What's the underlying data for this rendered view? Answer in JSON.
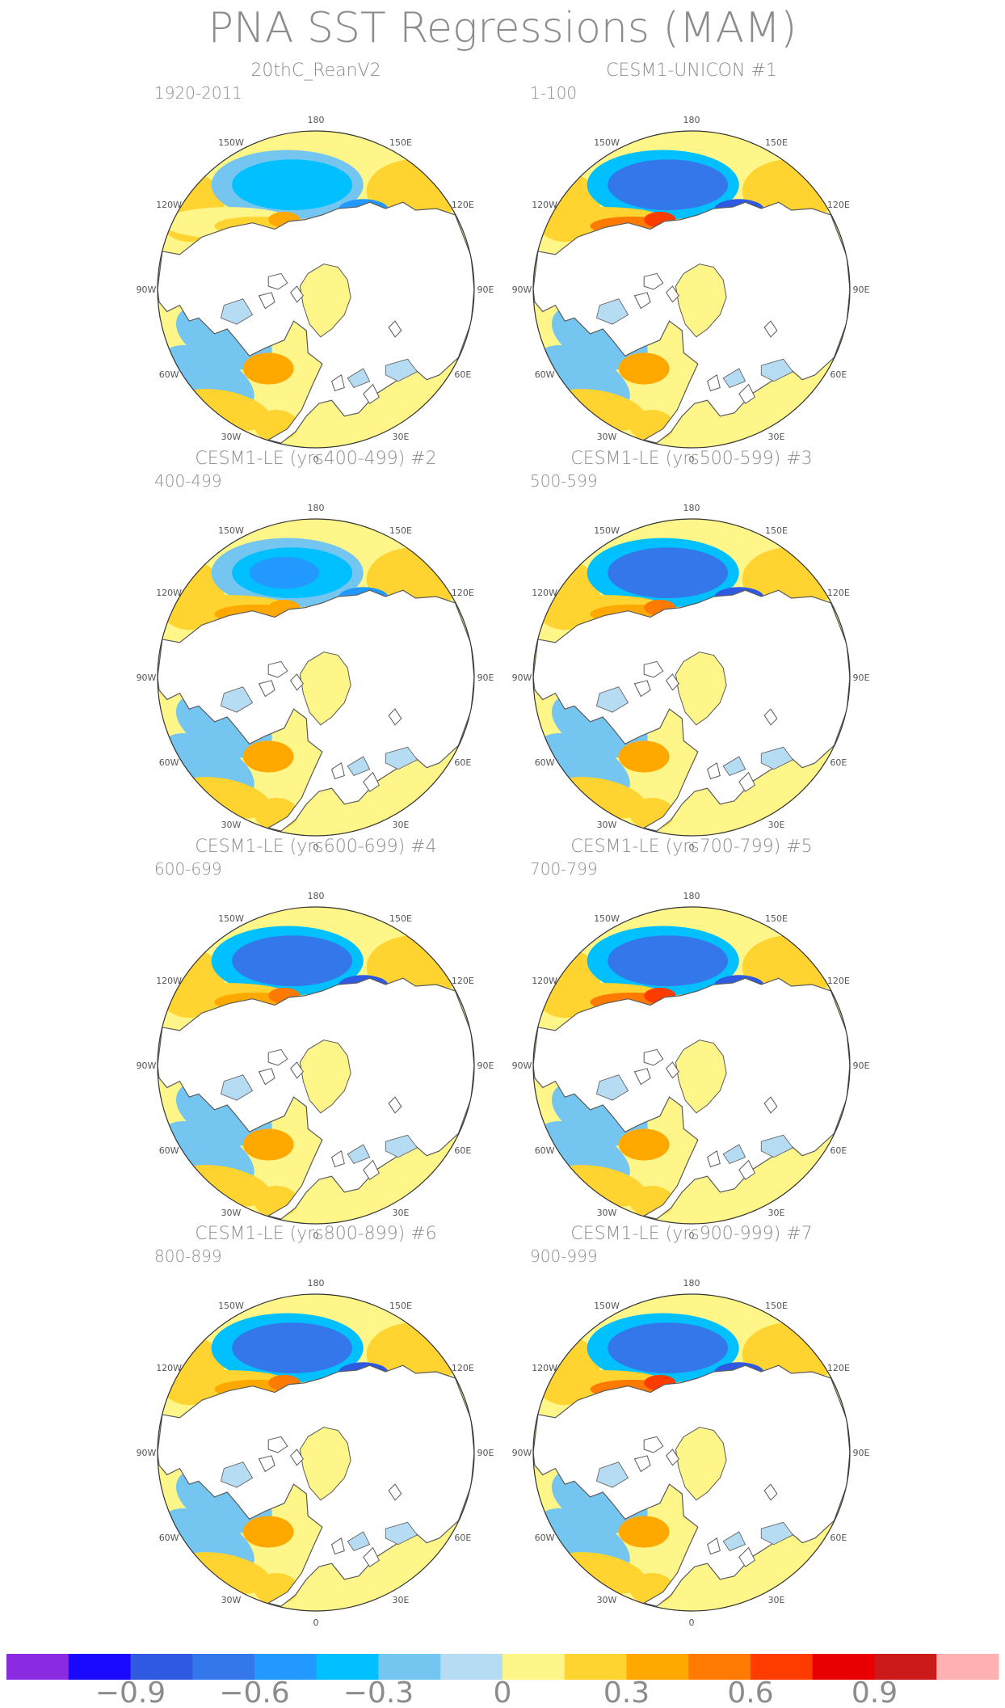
{
  "figure_title": "PNA SST Regressions (MAM)",
  "colors": {
    "land": "#ffffff",
    "coast": "#5a5a5a",
    "text": "#8c8c8c",
    "scale": [
      "#8a2be2",
      "#1a09ff",
      "#2e59e0",
      "#3477ea",
      "#2299ff",
      "#00c0ff",
      "#74c6f0",
      "#b5dcf2",
      "#fff68a",
      "#ffd430",
      "#ffa800",
      "#ff7a00",
      "#ff3c00",
      "#e80000",
      "#cc1a1a",
      "#ffb0b0"
    ]
  },
  "chart_data": {
    "type": "map",
    "projection": "north polar stereographic",
    "variable": "SST regression on PNA index (MAM)",
    "longitude_labels": [
      "180",
      "150E",
      "120E",
      "90E",
      "60E",
      "30E",
      "0",
      "30W",
      "60W",
      "90W",
      "120W",
      "150W"
    ],
    "panels": [
      {
        "title": "20thC_ReanV2",
        "period": "1920-2011",
        "tag": "",
        "pacific_min": -0.5,
        "pacific_max": 0.3,
        "atlantic_min": -0.3,
        "atlantic_max": 0.3
      },
      {
        "title": "CESM1-UNICON",
        "period": "1-100",
        "tag": "#1",
        "pacific_min": -0.8,
        "pacific_max": 0.6,
        "atlantic_min": -0.3,
        "atlantic_max": 0.3
      },
      {
        "title": "CESM1-LE (yrs400-499)",
        "period": "400-499",
        "tag": "#2",
        "pacific_min": -0.6,
        "pacific_max": 0.4,
        "atlantic_min": -0.4,
        "atlantic_max": 0.3
      },
      {
        "title": "CESM1-LE (yrs500-599)",
        "period": "500-599",
        "tag": "#3",
        "pacific_min": -0.8,
        "pacific_max": 0.5,
        "atlantic_min": -0.3,
        "atlantic_max": 0.3
      },
      {
        "title": "CESM1-LE (yrs600-699)",
        "period": "600-699",
        "tag": "#4",
        "pacific_min": -0.8,
        "pacific_max": 0.5,
        "atlantic_min": -0.3,
        "atlantic_max": 0.3
      },
      {
        "title": "CESM1-LE (yrs700-799)",
        "period": "700-799",
        "tag": "#5",
        "pacific_min": -0.8,
        "pacific_max": 0.6,
        "atlantic_min": -0.4,
        "atlantic_max": 0.3
      },
      {
        "title": "CESM1-LE (yrs800-899)",
        "period": "800-899",
        "tag": "#6",
        "pacific_min": -0.8,
        "pacific_max": 0.5,
        "atlantic_min": -0.4,
        "atlantic_max": 0.3
      },
      {
        "title": "CESM1-LE (yrs900-999)",
        "period": "900-999",
        "tag": "#7",
        "pacific_min": -0.8,
        "pacific_max": 0.6,
        "atlantic_min": -0.3,
        "atlantic_max": 0.3
      }
    ],
    "colorbar": {
      "levels": [
        -1.05,
        -0.9,
        -0.75,
        -0.6,
        -0.45,
        -0.3,
        -0.15,
        0,
        0.15,
        0.3,
        0.45,
        0.6,
        0.75,
        0.9,
        1.05
      ],
      "tick_labels": [
        "−0.9",
        "−0.6",
        "−0.3",
        "0",
        "0.3",
        "0.6",
        "0.9"
      ],
      "tick_values": [
        -0.9,
        -0.6,
        -0.3,
        0,
        0.3,
        0.6,
        0.9
      ]
    }
  }
}
